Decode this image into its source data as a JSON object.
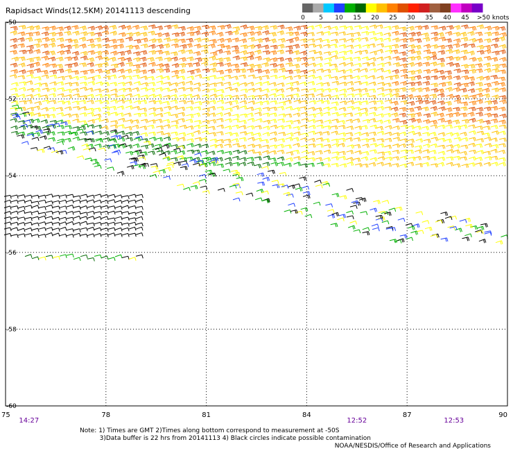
{
  "title": "Rapidsact Winds(12.5KM) 20141113 descending",
  "legend": {
    "ticks": [
      "0",
      "5",
      "10",
      "15",
      "20",
      "25",
      "30",
      "35",
      "40",
      "45",
      ">50 knots"
    ],
    "colors": [
      "#666666",
      "#aaaaaa",
      "#00c8ff",
      "#2040ff",
      "#00b000",
      "#006800",
      "#ffff00",
      "#ffc000",
      "#ff8000",
      "#e05000",
      "#ff2000",
      "#d02020",
      "#a06040",
      "#804020",
      "#ff30ff",
      "#c000c0",
      "#7800c8"
    ]
  },
  "chart_data": {
    "type": "wind-barb-map",
    "x_ticks": [
      "75",
      "78",
      "81",
      "84",
      "87",
      "90"
    ],
    "y_ticks": [
      "-50",
      "-52",
      "-54",
      "-56",
      "-58",
      "-60"
    ],
    "xlim": [
      75,
      90
    ],
    "ylim": [
      -60,
      -50
    ],
    "times": [
      {
        "label": "14:27",
        "lon": 75.7
      },
      {
        "label": "12:52",
        "lon": 85.5
      },
      {
        "label": "12:53",
        "lon": 88.4
      }
    ],
    "wind_regions": [
      {
        "name": "north-orange",
        "color_class": "25-35 kt",
        "colors": [
          "#ff8000",
          "#e05000",
          "#ffc000"
        ]
      },
      {
        "name": "central-yellow",
        "color_class": "20-25 kt",
        "colors": [
          "#ffff00",
          "#ffc000"
        ]
      },
      {
        "name": "green-band",
        "color_class": "15-20 kt",
        "colors": [
          "#00b000",
          "#006800"
        ]
      },
      {
        "name": "southern-edge",
        "color_class": "0-15 kt",
        "colors": [
          "#000000",
          "#2040ff",
          "#00b000",
          "#ffff00"
        ]
      }
    ]
  },
  "notes": {
    "line1": "Note: 1) Times are GMT 2)Times along bottom correspond to measurement at -50S",
    "line2": "3)Data buffer is 22 hrs from 20141113 4) Black circles indicate possible contamination"
  },
  "credit": "NOAA/NESDIS/Office of Research and Applications"
}
